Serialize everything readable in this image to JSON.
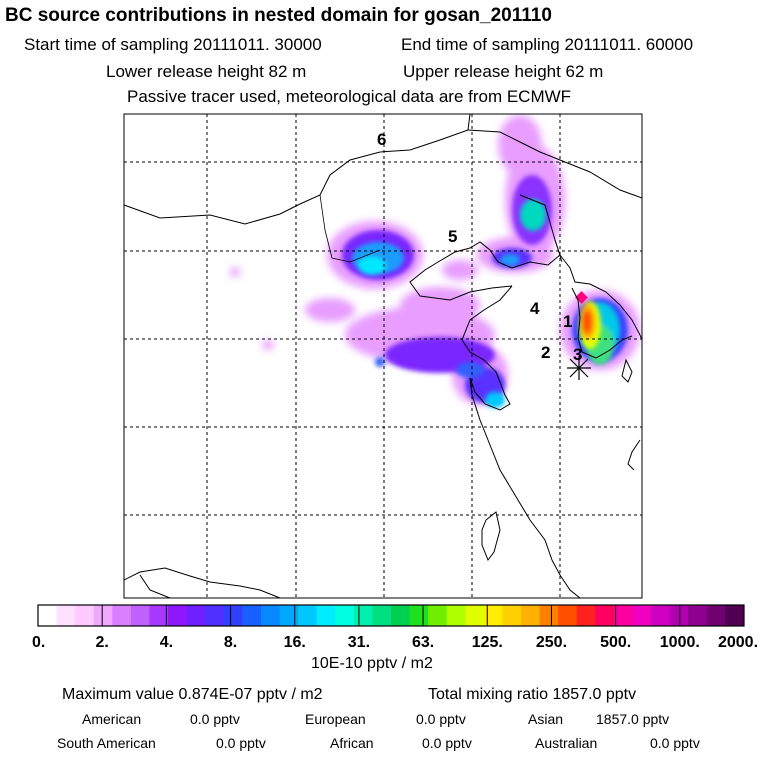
{
  "header": {
    "title": "BC  source contributions in nested domain for gosan_201110",
    "start_time": "Start time of sampling 20111011. 30000",
    "end_time": "End time of sampling 20111011. 60000",
    "lower_release": "Lower release height   82 m",
    "upper_release": "Upper release height   62 m",
    "tracer_note": "Passive tracer used, meteorological data are from ECMWF"
  },
  "map": {
    "region_labels": [
      "1",
      "2",
      "3",
      "4",
      "5",
      "6"
    ],
    "receptor": "gosan"
  },
  "colorbar": {
    "tick_labels": [
      "0.",
      "2.",
      "4.",
      "8.",
      "16.",
      "31.",
      "63.",
      "125.",
      "250.",
      "500.",
      "1000.",
      "2000."
    ],
    "units": "10E-10 pptv / m2",
    "colors": [
      "#ffffff",
      "#ffe0ff",
      "#ffc8ff",
      "#f0a8ff",
      "#d880ff",
      "#c060ff",
      "#a838ff",
      "#9018ff",
      "#7020ff",
      "#5030ff",
      "#3040ff",
      "#1860ff",
      "#0888ff",
      "#00a8ff",
      "#00c8ff",
      "#00ecff",
      "#00ffe0",
      "#00f0b0",
      "#00e080",
      "#00d050",
      "#20e020",
      "#70f000",
      "#b0ff00",
      "#e0ff00",
      "#ffee00",
      "#ffd000",
      "#ffb000",
      "#ff8000",
      "#ff5000",
      "#ff2020",
      "#ff0060",
      "#ff00a0",
      "#f000c0",
      "#d000c0",
      "#b000b0",
      "#900090",
      "#700070",
      "#500050"
    ]
  },
  "stats": {
    "maximum_value": "Maximum value  0.874E-07 pptv / m2",
    "total_mixing": "Total mixing ratio     1857.0 pptv",
    "american_label": "American",
    "american_value": "0.0 pptv",
    "european_label": "European",
    "european_value": "0.0 pptv",
    "asian_label": "Asian",
    "asian_value": "1857.0 pptv",
    "south_american_label": "South American",
    "south_american_value": "0.0 pptv",
    "african_label": "African",
    "african_value": "0.0 pptv",
    "australian_label": "Australian",
    "australian_value": "0.0 pptv"
  }
}
